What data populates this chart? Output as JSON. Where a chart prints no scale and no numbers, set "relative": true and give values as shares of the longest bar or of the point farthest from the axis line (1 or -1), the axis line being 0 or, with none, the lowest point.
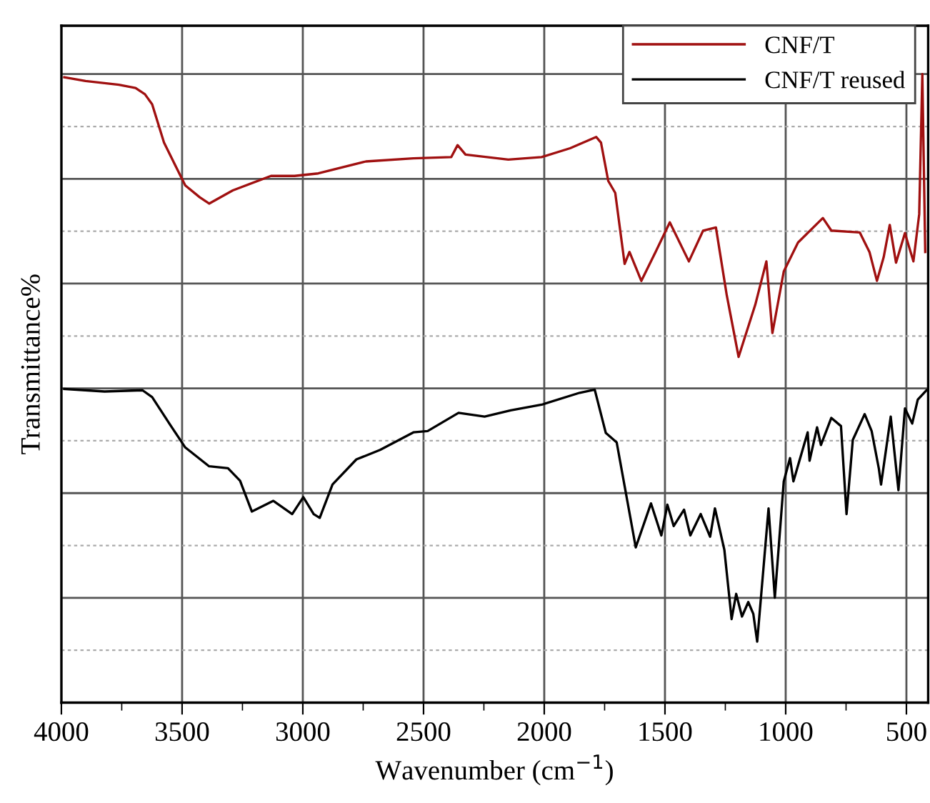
{
  "chart_data": {
    "type": "line",
    "relative": true,
    "xlabel": "Wavenumber (cm$^{−1}$)",
    "ylabel": "Transmittance%",
    "xlim": [
      4000,
      410
    ],
    "xticks": [
      4000,
      3500,
      3000,
      2500,
      2000,
      1500,
      1000,
      500
    ],
    "grid": true,
    "legend": "top right",
    "tick_labels": "x",
    "marker": "none",
    "line_style": "solid",
    "series": [
      {
        "name": "CNF/T",
        "color": "#a01010",
        "x": [
          3988,
          3900,
          3762,
          3693,
          3654,
          3624,
          3575,
          3526,
          3487,
          3427,
          3388,
          3290,
          3132,
          3034,
          2936,
          2739,
          2542,
          2385,
          2359,
          2326,
          2149,
          2011,
          1893,
          1785,
          1765,
          1735,
          1706,
          1667,
          1647,
          1598,
          1539,
          1480,
          1401,
          1342,
          1289,
          1244,
          1195,
          1126,
          1080,
          1055,
          1008,
          949,
          846,
          811,
          693,
          653,
          622,
          594,
          569,
          543,
          506,
          471,
          447,
          434,
          422
        ],
        "values": [
          0.995,
          0.989,
          0.983,
          0.978,
          0.968,
          0.952,
          0.891,
          0.853,
          0.823,
          0.804,
          0.794,
          0.815,
          0.838,
          0.838,
          0.842,
          0.861,
          0.866,
          0.868,
          0.887,
          0.872,
          0.864,
          0.868,
          0.882,
          0.9,
          0.891,
          0.83,
          0.811,
          0.698,
          0.717,
          0.671,
          0.717,
          0.764,
          0.702,
          0.751,
          0.756,
          0.648,
          0.55,
          0.633,
          0.702,
          0.588,
          0.686,
          0.732,
          0.771,
          0.751,
          0.748,
          0.717,
          0.671,
          0.709,
          0.76,
          0.7,
          0.747,
          0.702,
          0.777,
          1.0,
          0.717
        ]
      },
      {
        "name": "CNF/T reused",
        "color": "#000000",
        "x": [
          3988,
          3821,
          3664,
          3624,
          3546,
          3487,
          3388,
          3310,
          3260,
          3211,
          3122,
          3044,
          2998,
          2955,
          2930,
          2877,
          2778,
          2680,
          2542,
          2483,
          2355,
          2247,
          2139,
          2011,
          1853,
          1791,
          1745,
          1700,
          1621,
          1558,
          1515,
          1490,
          1464,
          1421,
          1395,
          1352,
          1313,
          1293,
          1254,
          1224,
          1205,
          1181,
          1155,
          1134,
          1118,
          1071,
          1045,
          1008,
          982,
          968,
          909,
          901,
          870,
          854,
          811,
          771,
          748,
          722,
          673,
          644,
          614,
          605,
          565,
          533,
          506,
          476,
          453,
          417
        ],
        "values": [
          0.499,
          0.495,
          0.497,
          0.486,
          0.44,
          0.406,
          0.376,
          0.373,
          0.353,
          0.304,
          0.321,
          0.3,
          0.327,
          0.3,
          0.294,
          0.347,
          0.387,
          0.402,
          0.43,
          0.432,
          0.461,
          0.455,
          0.465,
          0.474,
          0.493,
          0.498,
          0.429,
          0.414,
          0.247,
          0.317,
          0.266,
          0.315,
          0.281,
          0.307,
          0.266,
          0.3,
          0.264,
          0.309,
          0.243,
          0.133,
          0.173,
          0.137,
          0.16,
          0.141,
          0.097,
          0.309,
          0.167,
          0.352,
          0.389,
          0.352,
          0.43,
          0.385,
          0.438,
          0.41,
          0.453,
          0.44,
          0.3,
          0.418,
          0.459,
          0.432,
          0.372,
          0.347,
          0.455,
          0.338,
          0.468,
          0.444,
          0.482,
          0.497
        ]
      }
    ]
  }
}
